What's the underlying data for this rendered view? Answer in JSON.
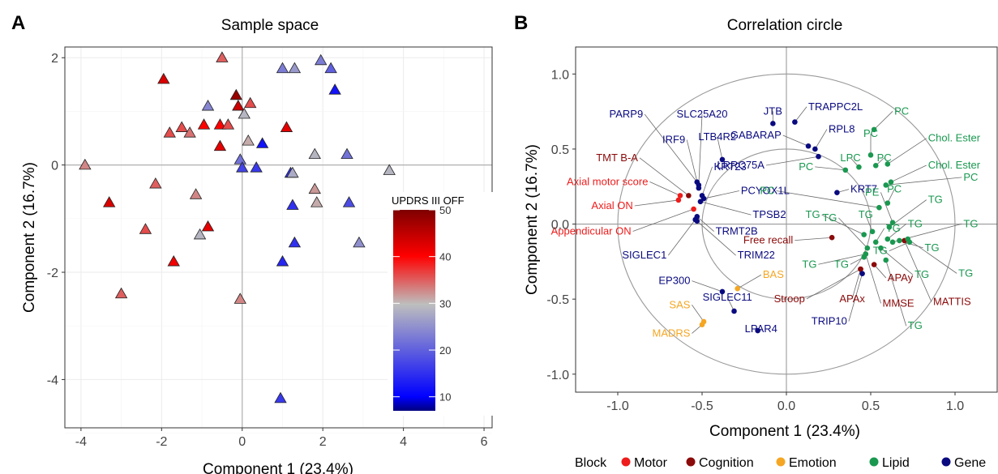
{
  "chart_data": [
    {
      "type": "scatter",
      "panel_label": "A",
      "title": "Sample space",
      "xlabel": "Component 1 (23.4%)",
      "ylabel": "Component 2 (16.7%)",
      "xlim": [
        -4.4,
        6.2
      ],
      "ylim": [
        -4.9,
        2.2
      ],
      "xticks": [
        -4,
        -2,
        0,
        2,
        4,
        6
      ],
      "yticks": [
        -4,
        -2,
        0,
        2
      ],
      "grid": true,
      "marker": "triangle",
      "legend": {
        "title": "UPDRS III OFF",
        "min": 7,
        "max": 50,
        "ticks": [
          10,
          20,
          30,
          40,
          50
        ],
        "placement": "inside-right",
        "colors": [
          "#00007f",
          "#0000ff",
          "#bebebe",
          "#ff0000",
          "#7f0000"
        ]
      },
      "points": [
        {
          "x": -3.9,
          "y": 0.0,
          "value": 33
        },
        {
          "x": -3.3,
          "y": -0.7,
          "value": 43
        },
        {
          "x": -3.0,
          "y": -2.4,
          "value": 35
        },
        {
          "x": -2.4,
          "y": -1.2,
          "value": 36
        },
        {
          "x": -2.15,
          "y": -0.35,
          "value": 35
        },
        {
          "x": -1.95,
          "y": 1.6,
          "value": 43
        },
        {
          "x": -1.8,
          "y": 0.6,
          "value": 36
        },
        {
          "x": -1.7,
          "y": -1.8,
          "value": 41
        },
        {
          "x": -1.5,
          "y": 0.7,
          "value": 36
        },
        {
          "x": -1.3,
          "y": 0.6,
          "value": 34
        },
        {
          "x": -1.15,
          "y": -0.55,
          "value": 33
        },
        {
          "x": -1.05,
          "y": -1.3,
          "value": 29
        },
        {
          "x": -0.95,
          "y": 0.75,
          "value": 40
        },
        {
          "x": -0.85,
          "y": -1.15,
          "value": 42
        },
        {
          "x": -0.85,
          "y": 1.1,
          "value": 24
        },
        {
          "x": -0.55,
          "y": 0.35,
          "value": 42
        },
        {
          "x": -0.55,
          "y": 0.75,
          "value": 40
        },
        {
          "x": -0.5,
          "y": 2.0,
          "value": 35
        },
        {
          "x": -0.35,
          "y": 0.75,
          "value": 36
        },
        {
          "x": -0.15,
          "y": 1.3,
          "value": 48
        },
        {
          "x": -0.1,
          "y": 1.1,
          "value": 44
        },
        {
          "x": 0.05,
          "y": 0.95,
          "value": 29
        },
        {
          "x": 0.2,
          "y": 1.15,
          "value": 36
        },
        {
          "x": 0.15,
          "y": 0.45,
          "value": 31
        },
        {
          "x": -0.05,
          "y": 0.1,
          "value": 22
        },
        {
          "x": 0.0,
          "y": -0.05,
          "value": 17
        },
        {
          "x": 0.35,
          "y": -0.05,
          "value": 16
        },
        {
          "x": 0.5,
          "y": 0.4,
          "value": 12
        },
        {
          "x": -0.05,
          "y": -2.5,
          "value": 33
        },
        {
          "x": 1.0,
          "y": 1.8,
          "value": 23
        },
        {
          "x": 1.3,
          "y": 1.8,
          "value": 26
        },
        {
          "x": 1.1,
          "y": 0.7,
          "value": 42
        },
        {
          "x": 1.2,
          "y": -0.15,
          "value": 15
        },
        {
          "x": 1.25,
          "y": -0.15,
          "value": 28
        },
        {
          "x": 1.25,
          "y": -0.75,
          "value": 15
        },
        {
          "x": 1.3,
          "y": -1.45,
          "value": 15
        },
        {
          "x": 1.0,
          "y": -1.8,
          "value": 14
        },
        {
          "x": 1.8,
          "y": 0.2,
          "value": 29
        },
        {
          "x": 1.8,
          "y": -0.45,
          "value": 32
        },
        {
          "x": 1.85,
          "y": -0.7,
          "value": 31
        },
        {
          "x": 1.95,
          "y": 1.95,
          "value": 23
        },
        {
          "x": 2.2,
          "y": 1.8,
          "value": 20
        },
        {
          "x": 2.3,
          "y": 1.4,
          "value": 12
        },
        {
          "x": 2.6,
          "y": 0.2,
          "value": 22
        },
        {
          "x": 2.65,
          "y": -0.7,
          "value": 18
        },
        {
          "x": 2.9,
          "y": -1.45,
          "value": 25
        },
        {
          "x": 3.65,
          "y": -0.1,
          "value": 29
        },
        {
          "x": 0.95,
          "y": -4.35,
          "value": 16
        }
      ]
    },
    {
      "type": "scatter",
      "panel_label": "B",
      "title": "Correlation circle",
      "xlabel": "Component 1 (23.4%)",
      "ylabel": "Component 2 (16.7%)",
      "xlim": [
        -1.25,
        1.25
      ],
      "ylim": [
        -1.12,
        1.18
      ],
      "xticks": [
        -1.0,
        -0.5,
        0.0,
        0.5,
        1.0
      ],
      "yticks": [
        -1.0,
        -0.5,
        0.0,
        0.5,
        1.0
      ],
      "xticklabels": [
        "-1.0",
        "-0.5",
        "0.0",
        "0.5",
        "1.0"
      ],
      "yticklabels": [
        "-1.0",
        "-0.5",
        "0.0",
        "0.5",
        "1.0"
      ],
      "grid": false,
      "circles": [
        1.0,
        0.5
      ],
      "legend": {
        "title": "Block",
        "placement": "bottom",
        "entries": [
          {
            "label": "Motor",
            "color": "#ee1c1c"
          },
          {
            "label": "Cognition",
            "color": "#8b0a0a"
          },
          {
            "label": "Emotion",
            "color": "#f5a623"
          },
          {
            "label": "Lipid",
            "color": "#1a9850"
          },
          {
            "label": "Gene",
            "color": "#0a0a80"
          }
        ]
      },
      "points": [
        {
          "label": "Axial motor score",
          "block": "Motor",
          "x": -0.63,
          "y": 0.19,
          "lx": -0.82,
          "ly": 0.26
        },
        {
          "label": "Axial ON",
          "block": "Motor",
          "x": -0.64,
          "y": 0.16,
          "lx": -0.91,
          "ly": 0.1
        },
        {
          "label": "Appendicular ON",
          "block": "Motor",
          "x": -0.55,
          "y": 0.1,
          "lx": -0.92,
          "ly": -0.07
        },
        {
          "label": "TMT B-A",
          "block": "Cognition",
          "x": -0.58,
          "y": 0.19,
          "lx": -0.88,
          "ly": 0.42
        },
        {
          "label": "Free recall",
          "block": "Cognition",
          "x": 0.27,
          "y": -0.09,
          "lx": 0.04,
          "ly": -0.13
        },
        {
          "label": "MMSE",
          "block": "Cognition",
          "x": 0.47,
          "y": -0.2,
          "lx": 0.57,
          "ly": -0.55
        },
        {
          "label": "APAy",
          "block": "Cognition",
          "x": 0.52,
          "y": -0.27,
          "lx": 0.6,
          "ly": -0.38
        },
        {
          "label": "APAx",
          "block": "Cognition",
          "x": 0.44,
          "y": -0.3,
          "lx": 0.39,
          "ly": -0.52
        },
        {
          "label": "Stroop",
          "block": "Cognition",
          "x": 0.44,
          "y": -0.3,
          "lx": 0.11,
          "ly": -0.52
        },
        {
          "label": "MATTIS",
          "block": "Cognition",
          "x": 0.7,
          "y": -0.11,
          "lx": 0.87,
          "ly": -0.54
        },
        {
          "label": "BAS",
          "block": "Emotion",
          "x": -0.29,
          "y": -0.43,
          "lx": -0.14,
          "ly": -0.36
        },
        {
          "label": "SAS",
          "block": "Emotion",
          "x": -0.49,
          "y": -0.65,
          "lx": -0.57,
          "ly": -0.56
        },
        {
          "label": "MADRS",
          "block": "Emotion",
          "x": -0.5,
          "y": -0.67,
          "lx": -0.57,
          "ly": -0.75
        },
        {
          "label": "PARP9",
          "block": "Gene",
          "x": -0.53,
          "y": 0.28,
          "lx": -0.85,
          "ly": 0.71
        },
        {
          "label": "SLC25A20",
          "block": "Gene",
          "x": -0.52,
          "y": 0.26,
          "lx": -0.5,
          "ly": 0.71
        },
        {
          "label": "IRF9",
          "block": "Gene",
          "x": -0.52,
          "y": 0.24,
          "lx": -0.6,
          "ly": 0.54
        },
        {
          "label": "LTB4R2",
          "block": "Gene",
          "x": -0.38,
          "y": 0.43,
          "lx": -0.41,
          "ly": 0.56
        },
        {
          "label": "KRT23",
          "block": "Gene",
          "x": -0.5,
          "y": 0.19,
          "lx": -0.43,
          "ly": 0.36
        },
        {
          "label": "PCYOX1L",
          "block": "Gene",
          "x": -0.49,
          "y": 0.17,
          "lx": -0.27,
          "ly": 0.2
        },
        {
          "label": "TPSB2",
          "block": "Gene",
          "x": -0.51,
          "y": 0.15,
          "lx": -0.2,
          "ly": 0.04
        },
        {
          "label": "TRMT2B",
          "block": "Gene",
          "x": -0.53,
          "y": 0.05,
          "lx": -0.42,
          "ly": -0.07
        },
        {
          "label": "SIGLEC1",
          "block": "Gene",
          "x": -0.54,
          "y": 0.03,
          "lx": -0.71,
          "ly": -0.23
        },
        {
          "label": "TRIM22",
          "block": "Gene",
          "x": -0.53,
          "y": 0.02,
          "lx": -0.29,
          "ly": -0.23
        },
        {
          "label": "EP300",
          "block": "Gene",
          "x": -0.38,
          "y": -0.45,
          "lx": -0.57,
          "ly": -0.4
        },
        {
          "label": "SIGLEC11",
          "block": "Gene",
          "x": -0.31,
          "y": -0.58,
          "lx": -0.35,
          "ly": -0.51
        },
        {
          "label": "LPAR4",
          "block": "Gene",
          "x": -0.17,
          "y": -0.71,
          "lx": -0.15,
          "ly": -0.72
        },
        {
          "label": "JTB",
          "block": "Gene",
          "x": -0.08,
          "y": 0.67,
          "lx": -0.08,
          "ly": 0.73
        },
        {
          "label": "TRAPPC2L",
          "block": "Gene",
          "x": 0.05,
          "y": 0.68,
          "lx": 0.13,
          "ly": 0.76
        },
        {
          "label": "GABARAP",
          "block": "Gene",
          "x": 0.13,
          "y": 0.52,
          "lx": -0.03,
          "ly": 0.57
        },
        {
          "label": "RPL8",
          "block": "Gene",
          "x": 0.17,
          "y": 0.5,
          "lx": 0.25,
          "ly": 0.61
        },
        {
          "label": "LRRC75A",
          "block": "Gene",
          "x": 0.19,
          "y": 0.45,
          "lx": -0.13,
          "ly": 0.37
        },
        {
          "label": "KRT7",
          "block": "Gene",
          "x": 0.3,
          "y": 0.21,
          "lx": 0.38,
          "ly": 0.21
        },
        {
          "label": "TRIP10",
          "block": "Gene",
          "x": 0.45,
          "y": -0.33,
          "lx": 0.36,
          "ly": -0.67
        },
        {
          "label": "PC",
          "block": "Lipid",
          "x": 0.52,
          "y": 0.63,
          "lx": 0.64,
          "ly": 0.73
        },
        {
          "label": "PC",
          "block": "Lipid",
          "x": 0.5,
          "y": 0.46,
          "lx": 0.5,
          "ly": 0.58
        },
        {
          "label": "LPC",
          "block": "Lipid",
          "x": 0.43,
          "y": 0.38,
          "lx": 0.38,
          "ly": 0.42
        },
        {
          "label": "PC",
          "block": "Lipid",
          "x": 0.53,
          "y": 0.39,
          "lx": 0.58,
          "ly": 0.42
        },
        {
          "label": "Chol. Ester",
          "block": "Lipid",
          "x": 0.6,
          "y": 0.4,
          "lx": 0.84,
          "ly": 0.55
        },
        {
          "label": "Chol. Ester",
          "block": "Lipid",
          "x": 0.62,
          "y": 0.28,
          "lx": 0.84,
          "ly": 0.37
        },
        {
          "label": "PC",
          "block": "Lipid",
          "x": 0.59,
          "y": 0.26,
          "lx": 1.05,
          "ly": 0.29
        },
        {
          "label": "PC",
          "block": "Lipid",
          "x": 0.35,
          "y": 0.36,
          "lx": 0.16,
          "ly": 0.36
        },
        {
          "label": "PC",
          "block": "Lipid",
          "x": 0.6,
          "y": 0.14,
          "lx": 0.64,
          "ly": 0.21
        },
        {
          "label": "PC",
          "block": "Lipid",
          "x": 0.55,
          "y": 0.11,
          "lx": -0.07,
          "ly": 0.2
        },
        {
          "label": "PE",
          "block": "Lipid",
          "x": 0.63,
          "y": 0.01,
          "lx": 0.55,
          "ly": 0.19
        },
        {
          "label": "TG",
          "block": "Lipid",
          "x": 0.61,
          "y": -0.02,
          "lx": 0.84,
          "ly": 0.14
        },
        {
          "label": "TG",
          "block": "Lipid",
          "x": 0.46,
          "y": -0.07,
          "lx": 0.2,
          "ly": 0.04
        },
        {
          "label": "TG",
          "block": "Lipid",
          "x": 0.51,
          "y": -0.05,
          "lx": 0.47,
          "ly": 0.04
        },
        {
          "label": "TG",
          "block": "Lipid",
          "x": 0.6,
          "y": -0.1,
          "lx": 0.72,
          "ly": -0.02
        },
        {
          "label": "TG",
          "block": "Lipid",
          "x": 0.63,
          "y": -0.12,
          "lx": 1.05,
          "ly": -0.02
        },
        {
          "label": "TG",
          "block": "Lipid",
          "x": 0.53,
          "y": -0.12,
          "lx": 0.59,
          "ly": -0.05
        },
        {
          "label": "TG",
          "block": "Lipid",
          "x": 0.48,
          "y": -0.16,
          "lx": 0.3,
          "ly": 0.02
        },
        {
          "label": "TG",
          "block": "Lipid",
          "x": 0.67,
          "y": -0.11,
          "lx": 0.82,
          "ly": -0.18
        },
        {
          "label": "TG",
          "block": "Lipid",
          "x": 0.73,
          "y": -0.12,
          "lx": 0.6,
          "ly": -0.2
        },
        {
          "label": "TG",
          "block": "Lipid",
          "x": 0.72,
          "y": -0.1,
          "lx": 1.02,
          "ly": -0.35
        },
        {
          "label": "TG",
          "block": "Lipid",
          "x": 0.56,
          "y": -0.16,
          "lx": 0.76,
          "ly": -0.36
        },
        {
          "label": "TG",
          "block": "Lipid",
          "x": 0.47,
          "y": -0.2,
          "lx": 0.18,
          "ly": -0.29
        },
        {
          "label": "TG",
          "block": "Lipid",
          "x": 0.46,
          "y": -0.22,
          "lx": 0.37,
          "ly": -0.29
        },
        {
          "label": "TG",
          "block": "Lipid",
          "x": 0.59,
          "y": -0.24,
          "lx": 0.72,
          "ly": -0.7
        }
      ]
    }
  ]
}
